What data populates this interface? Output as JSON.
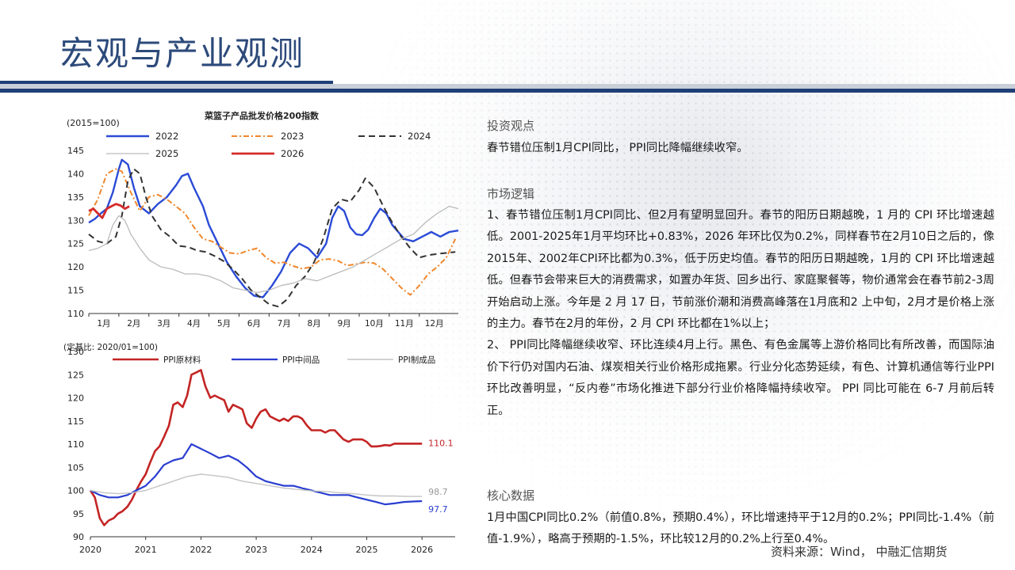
{
  "header": {
    "title": "宏观与产业观测"
  },
  "chart_top": {
    "chart_data": {
      "type": "line",
      "title": "菜篮子产品批发价格200指数",
      "index_note": "(2015=100)",
      "ylim": [
        110,
        145
      ],
      "yticks": [
        110,
        115,
        120,
        125,
        130,
        135,
        140,
        145
      ],
      "categories": [
        "1月",
        "2月",
        "3月",
        "4月",
        "5月",
        "6月",
        "7月",
        "8月",
        "9月",
        "10月",
        "11月",
        "12月"
      ],
      "x_range": [
        1,
        13.3
      ],
      "legend": [
        "2022",
        "2023",
        "2024",
        "2025",
        "2026"
      ],
      "series": [
        {
          "name": "2022",
          "color": "#2b4bd6",
          "dash": "",
          "width": 2.4,
          "x": [
            1.0,
            1.2,
            1.4,
            1.6,
            1.8,
            2.0,
            2.1,
            2.3,
            2.5,
            2.7,
            3.0,
            3.3,
            3.6,
            3.9,
            4.1,
            4.3,
            4.5,
            4.8,
            5.0,
            5.3,
            5.6,
            5.9,
            6.2,
            6.5,
            6.8,
            7.1,
            7.4,
            7.7,
            8.0,
            8.3,
            8.6,
            8.9,
            9.1,
            9.3,
            9.5,
            9.7,
            9.9,
            10.1,
            10.3,
            10.5,
            10.7,
            10.9,
            11.1,
            11.3,
            11.5,
            11.8,
            12.1,
            12.4,
            12.7,
            13.0,
            13.3
          ],
          "y": [
            129.5,
            130.3,
            131.5,
            132.5,
            136,
            141,
            143,
            142,
            137,
            133,
            131.5,
            133.5,
            135,
            137.5,
            139.5,
            140,
            137,
            133,
            129,
            125,
            121,
            118,
            115.5,
            113.8,
            113.5,
            116,
            119,
            123,
            125,
            124,
            122,
            125,
            130.5,
            133,
            132,
            128.5,
            127,
            126.8,
            128,
            130.5,
            132.5,
            131.5,
            129,
            127.5,
            126,
            125.5,
            126.5,
            127.5,
            126.5,
            127.5,
            127.8
          ]
        },
        {
          "name": "2023",
          "color": "#f0872d",
          "dash": "7,3,2,3",
          "width": 2.0,
          "x": [
            1.0,
            1.3,
            1.6,
            1.9,
            2.1,
            2.4,
            2.7,
            3.0,
            3.3,
            3.6,
            3.9,
            4.2,
            4.5,
            4.8,
            5.1,
            5.4,
            5.7,
            6.0,
            6.3,
            6.6,
            6.9,
            7.2,
            7.5,
            7.8,
            8.1,
            8.4,
            8.7,
            9.0,
            9.3,
            9.6,
            9.9,
            10.2,
            10.5,
            10.8,
            11.1,
            11.4,
            11.7,
            12.0,
            12.3,
            12.6,
            12.9,
            13.2
          ],
          "y": [
            131,
            134.5,
            140,
            141,
            140.5,
            136,
            132,
            135,
            135.5,
            134.5,
            133,
            131.5,
            128.5,
            126,
            125.5,
            124.2,
            123,
            122.8,
            123.5,
            124,
            122,
            120.8,
            121,
            120.2,
            119.6,
            120,
            121.5,
            121.7,
            121.3,
            120.3,
            120.6,
            121,
            120.8,
            119.5,
            117.5,
            115.5,
            114,
            116,
            118.5,
            120,
            122,
            126
          ]
        },
        {
          "name": "2024",
          "color": "#333333",
          "dash": "8,5",
          "width": 2.0,
          "x": [
            1.0,
            1.3,
            1.6,
            1.9,
            2.1,
            2.3,
            2.5,
            2.7,
            2.9,
            3.1,
            3.4,
            3.7,
            4.0,
            4.3,
            4.6,
            4.9,
            5.2,
            5.5,
            5.8,
            6.1,
            6.4,
            6.7,
            7.0,
            7.3,
            7.6,
            7.9,
            8.2,
            8.5,
            8.8,
            9.1,
            9.4,
            9.7,
            10.0,
            10.2,
            10.5,
            10.8,
            11.1,
            11.4,
            11.7,
            12.0,
            12.3,
            12.6,
            12.9,
            13.2
          ],
          "y": [
            127,
            125.5,
            125,
            126.5,
            131,
            138.5,
            141,
            140,
            135,
            131,
            128,
            126.5,
            124.5,
            124.3,
            123.5,
            123.2,
            122.3,
            121.2,
            119.5,
            117.5,
            115,
            113.5,
            112,
            111.5,
            113,
            116,
            118,
            121,
            126,
            132.5,
            134.5,
            134,
            136.5,
            139,
            137,
            133,
            129.5,
            126.5,
            124,
            122,
            122.5,
            122.8,
            123,
            123.2
          ]
        },
        {
          "name": "2025",
          "color": "#bbbbbb",
          "dash": "",
          "width": 1.3,
          "x": [
            1.0,
            1.3,
            1.6,
            1.8,
            2.0,
            2.2,
            2.4,
            2.7,
            3.0,
            3.4,
            3.8,
            4.2,
            4.6,
            5.0,
            5.4,
            5.8,
            6.2,
            6.6,
            7.0,
            7.4,
            7.8,
            8.2,
            8.6,
            9.0,
            9.4,
            9.8,
            10.2,
            10.6,
            11.0,
            11.4,
            11.8,
            12.2,
            12.6,
            13.0,
            13.3
          ],
          "y": [
            123.5,
            124,
            125,
            129,
            131,
            130,
            127,
            124,
            121.5,
            120,
            119.5,
            118.5,
            118.5,
            118,
            117,
            115.5,
            115,
            114.5,
            115,
            116,
            116.5,
            117.5,
            117,
            118,
            119,
            120,
            121.5,
            123,
            124.5,
            126,
            127,
            129.5,
            131.5,
            133,
            132.5
          ]
        },
        {
          "name": "2026",
          "color": "#d42a2a",
          "dash": "",
          "width": 2.8,
          "x": [
            1.0,
            1.15,
            1.3,
            1.45,
            1.6,
            1.75,
            1.9,
            2.05,
            2.2,
            2.35
          ],
          "y": [
            132,
            132.5,
            131.5,
            130.5,
            132.5,
            133,
            133.5,
            133.2,
            132.5,
            133
          ]
        }
      ]
    }
  },
  "chart_bottom": {
    "chart_data": {
      "type": "line",
      "note": "(定基比: 2020/01=100)",
      "ylim": [
        90,
        130
      ],
      "yticks": [
        90,
        95,
        100,
        105,
        110,
        115,
        120,
        125,
        130
      ],
      "xticks": [
        "2020",
        "2021",
        "2022",
        "2023",
        "2024",
        "2025",
        "2026"
      ],
      "x_range": [
        2020,
        2026.6
      ],
      "legend": [
        "PPI原材料",
        "PPI中间品",
        "PPI制成品"
      ],
      "end_labels": [
        "110.1",
        "98.7",
        "97.7"
      ],
      "series": [
        {
          "name": "PPI原材料",
          "color": "#c42424",
          "width": 2.6,
          "x": [
            2020.0,
            2020.08,
            2020.17,
            2020.25,
            2020.33,
            2020.42,
            2020.5,
            2020.58,
            2020.67,
            2020.75,
            2020.83,
            2020.92,
            2021.0,
            2021.08,
            2021.17,
            2021.25,
            2021.33,
            2021.42,
            2021.5,
            2021.58,
            2021.67,
            2021.75,
            2021.83,
            2021.92,
            2022.0,
            2022.08,
            2022.17,
            2022.25,
            2022.33,
            2022.42,
            2022.5,
            2022.58,
            2022.67,
            2022.75,
            2022.83,
            2022.92,
            2023.0,
            2023.08,
            2023.17,
            2023.25,
            2023.33,
            2023.42,
            2023.5,
            2023.58,
            2023.67,
            2023.75,
            2023.83,
            2023.92,
            2024.0,
            2024.08,
            2024.17,
            2024.25,
            2024.33,
            2024.42,
            2024.5,
            2024.58,
            2024.67,
            2024.75,
            2024.83,
            2024.92,
            2025.0,
            2025.08,
            2025.17,
            2025.25,
            2025.33,
            2025.42,
            2025.5,
            2025.58,
            2025.67,
            2025.75,
            2025.83,
            2025.92,
            2026.0
          ],
          "y": [
            100,
            98.5,
            94,
            92.5,
            93.5,
            94,
            95,
            95.5,
            96.5,
            98,
            100,
            102,
            103.5,
            106,
            108.5,
            109.5,
            111.5,
            114,
            118.5,
            119,
            118,
            120.5,
            125,
            125.5,
            126,
            122.5,
            120,
            120.5,
            120,
            119.5,
            117,
            118.5,
            118,
            117.5,
            114.5,
            113.5,
            115.5,
            117,
            117.5,
            116,
            115.5,
            115,
            115.5,
            115,
            116,
            116,
            115.5,
            114,
            113,
            113,
            113,
            112.5,
            113,
            113,
            112,
            111,
            110.5,
            111,
            111,
            111,
            110.5,
            109.5,
            109.5,
            109.6,
            109.8,
            109.7,
            110.1,
            110.1,
            110.1,
            110.1,
            110.1,
            110.1,
            110.1
          ]
        },
        {
          "name": "PPI中间品",
          "color": "#2a3ed0",
          "width": 2.2,
          "x": [
            2020.0,
            2020.17,
            2020.33,
            2020.5,
            2020.67,
            2020.83,
            2021.0,
            2021.17,
            2021.33,
            2021.5,
            2021.67,
            2021.83,
            2022.0,
            2022.17,
            2022.33,
            2022.5,
            2022.67,
            2022.83,
            2023.0,
            2023.17,
            2023.33,
            2023.5,
            2023.67,
            2023.83,
            2024.0,
            2024.17,
            2024.33,
            2024.5,
            2024.67,
            2024.83,
            2025.0,
            2025.17,
            2025.33,
            2025.5,
            2025.67,
            2025.83,
            2026.0
          ],
          "y": [
            100,
            99,
            98.5,
            98.5,
            99,
            100,
            101,
            103,
            105.5,
            106.5,
            107,
            110,
            109,
            108,
            107,
            107.5,
            106.5,
            105,
            103,
            102,
            101.5,
            101,
            101,
            100.5,
            100,
            99.5,
            99,
            99,
            99,
            98.5,
            98,
            97.5,
            97,
            97.2,
            97.5,
            97.6,
            97.7
          ]
        },
        {
          "name": "PPI制成品",
          "color": "#c4c4c4",
          "width": 1.4,
          "x": [
            2020.0,
            2020.25,
            2020.5,
            2020.75,
            2021.0,
            2021.25,
            2021.5,
            2021.75,
            2022.0,
            2022.25,
            2022.5,
            2022.75,
            2023.0,
            2023.25,
            2023.5,
            2023.75,
            2024.0,
            2024.25,
            2024.5,
            2024.75,
            2025.0,
            2025.25,
            2025.5,
            2025.75,
            2026.0
          ],
          "y": [
            100,
            99.5,
            99.3,
            99.5,
            100,
            101,
            102,
            103,
            103.5,
            103.2,
            102.8,
            102,
            101.5,
            101,
            100.5,
            100.2,
            99.9,
            99.8,
            99.5,
            99.3,
            99,
            98.8,
            98.8,
            98.7,
            98.7
          ]
        }
      ]
    }
  },
  "right": {
    "sec1_title": "投资观点",
    "sec1_text": "春节错位压制1月CPI同比， PPI同比降幅继续收窄。",
    "sec2_title": "市场逻辑",
    "sec2_text1": "1、春节错位压制1月CPI同比、但2月有望明显回升。春节的阳历日期越晚，1 月的 CPI 环比增速越低。2001-2025年1月平均环比+0.83%，2026 年环比仅为0.2%，同样春节在2月10日之后的，像2015年、2002年CPI环比都为0.3%，低于历史均值。春节的阳历日期越晚，1月的 CPI 环比增速越低。但春节会带来巨大的消费需求，如置办年货、回乡出行、家庭聚餐等，物价通常会在春节前2-3周开始启动上涨。今年是 2 月 17 日，节前涨价潮和消费高峰落在1月底和2 上中旬，2月才是价格上涨的主力。春节在2月的年份，2 月 CPI 环比都在1%以上；",
    "sec2_text2": "2、 PPI同比降幅继续收窄、环比连续4月上行。黑色、有色金属等上游价格同比有所改善，而国际油价下行仍对国内石油、煤炭相关行业价格形成拖累。行业分化态势延续，有色、计算机通信等行业PPI环比改善明显，“反内卷”市场化推进下部分行业价格降幅持续收窄。 PPI 同比可能在 6-7 月前后转正。",
    "sec3_title": "核心数据",
    "sec3_text": "1月中国CPI同比0.2%（前值0.8%，预期0.4%），环比增速持平于12月的0.2%；PPI同比-1.4%（前值-1.9%），略高于预期的-1.5%，环比较12月的0.2%上行至0.4%。",
    "source": "资料来源：Wind， 中融汇信期货"
  }
}
